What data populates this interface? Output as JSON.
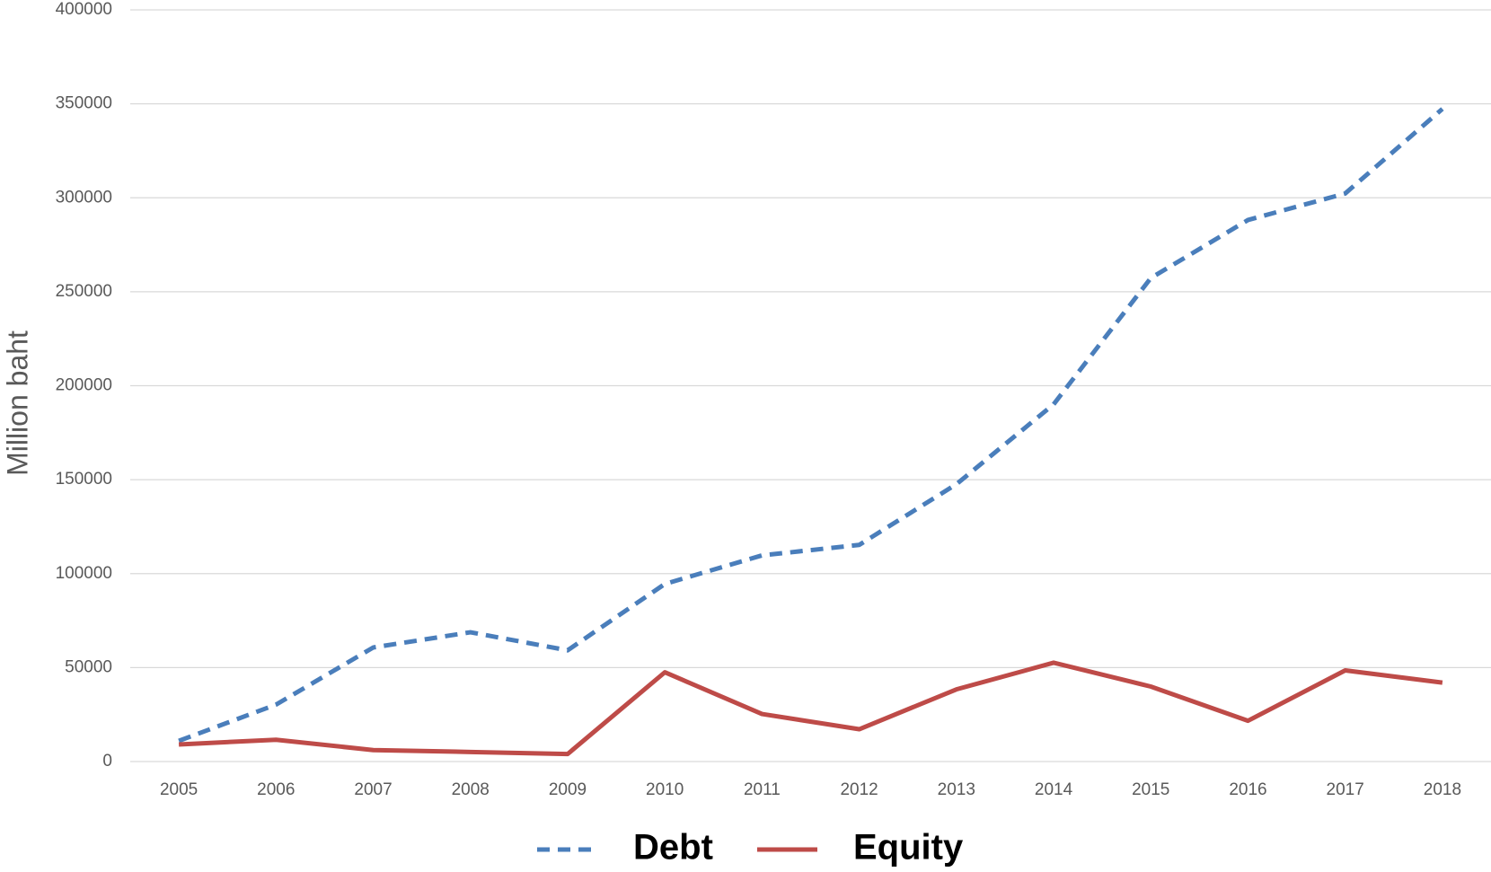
{
  "chart_data": {
    "type": "line",
    "y_label": "Million baht",
    "categories": [
      "2005",
      "2006",
      "2007",
      "2008",
      "2009",
      "2010",
      "2011",
      "2012",
      "2013",
      "2014",
      "2015",
      "2016",
      "2017",
      "2018"
    ],
    "series": [
      {
        "name": "Debt",
        "color": "#4a7ebb",
        "style": "dashed",
        "values": [
          11000,
          30300,
          60700,
          68800,
          59200,
          94500,
          109700,
          115300,
          147600,
          190100,
          257300,
          288200,
          302300,
          347300
        ]
      },
      {
        "name": "Equity",
        "color": "#be4b48",
        "style": "solid",
        "values": [
          9100,
          11600,
          6100,
          5100,
          4000,
          47500,
          25300,
          17200,
          38400,
          52600,
          39900,
          21700,
          48500,
          42000
        ]
      }
    ],
    "ylim": [
      0,
      400000
    ],
    "yticks": [
      0,
      50000,
      100000,
      150000,
      200000,
      250000,
      300000,
      350000,
      400000
    ],
    "grid": true,
    "legend": "bottom"
  }
}
